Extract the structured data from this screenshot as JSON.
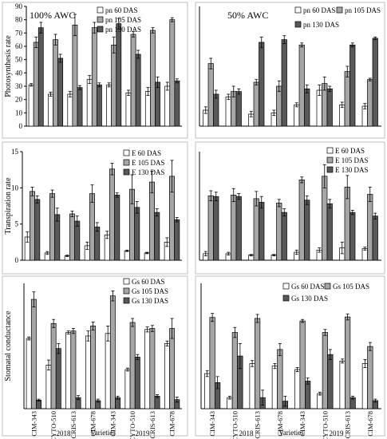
{
  "colors": {
    "s60": "#ffffff",
    "s105": "#a6a6a6",
    "s130": "#595959",
    "stroke": "#000000"
  },
  "chart_data": [
    {
      "type": "bar",
      "panel": "A",
      "annotation": "100% AWC",
      "ylabel": "Photosynthesis rate",
      "ylim": [
        0,
        90
      ],
      "yticks": [
        0,
        10,
        20,
        30,
        40,
        50,
        60,
        70,
        80,
        90
      ],
      "categories": [
        "CIM-343",
        "CYTO-510",
        "CRIS-613",
        "CIM-678",
        "CIM-343",
        "CYTO-510",
        "CRIS-613",
        "CIM-678"
      ],
      "legend": [
        "pn 60 DAS",
        "pn 105 DAS",
        "pn 130 DAS"
      ],
      "series": [
        {
          "name": "pn 60 DAS",
          "values": [
            31,
            24,
            24,
            35,
            31,
            25,
            26,
            30
          ],
          "errors": [
            1,
            1.5,
            2,
            3,
            1.5,
            2,
            3,
            3
          ]
        },
        {
          "name": "pn 105 DAS",
          "values": [
            63,
            65,
            76,
            74,
            61,
            69,
            72,
            80
          ],
          "errors": [
            4,
            4,
            8,
            4,
            6,
            2,
            2,
            1.5
          ]
        },
        {
          "name": "pn 130 DAS",
          "values": [
            74,
            51,
            29,
            31,
            77,
            54,
            33,
            34
          ],
          "errors": [
            4,
            3,
            1.5,
            1.5,
            4,
            3,
            4,
            1.5
          ]
        }
      ]
    },
    {
      "type": "bar",
      "panel": "B",
      "annotation": "50% AWC",
      "ylabel": "",
      "ylim": [
        0,
        90
      ],
      "yticks": [],
      "categories": [
        "CIM-343",
        "CYTO-510",
        "CRIS-613",
        "CIM-678",
        "CIM-343",
        "CYTO-510",
        "CRIS-613",
        "CIM-678"
      ],
      "legend": [
        "pn 60 DAS",
        "pn 105 DAS",
        "pn 130 DAS"
      ],
      "series": [
        {
          "name": "pn 60 DAS",
          "values": [
            12,
            22,
            9,
            10,
            16,
            27,
            16,
            15
          ],
          "errors": [
            2.5,
            2,
            2,
            2,
            1.5,
            4,
            2,
            2
          ]
        },
        {
          "name": "pn 105 DAS",
          "values": [
            47,
            26,
            33,
            30,
            61,
            32,
            41,
            35
          ],
          "errors": [
            4,
            4,
            2,
            4,
            1.5,
            5,
            4,
            1
          ]
        },
        {
          "name": "pn 130 DAS",
          "values": [
            24,
            26,
            63,
            65,
            28,
            28,
            61,
            66
          ],
          "errors": [
            3,
            2,
            4,
            3,
            3,
            2,
            1.5,
            1
          ]
        }
      ]
    },
    {
      "type": "bar",
      "panel": "C",
      "ylabel": "Transpiration rate",
      "ylim": [
        0,
        15
      ],
      "yticks": [
        0,
        5,
        10,
        15
      ],
      "categories": [
        "CIM-343",
        "CYTO-510",
        "CRIS-613",
        "CIM-678",
        "CIM-343",
        "CYTO-510",
        "CRIS-613",
        "CIM-678"
      ],
      "legend": [
        "E 60 DAS",
        "E 105 DAS",
        "E 130 DAS"
      ],
      "series": [
        {
          "name": "E 60 DAS",
          "values": [
            3.2,
            1.0,
            0.6,
            2.0,
            3.5,
            1.3,
            1.0,
            2.5
          ],
          "errors": [
            0.7,
            0.2,
            0.1,
            0.5,
            0.5,
            0.1,
            0.1,
            0.6
          ]
        },
        {
          "name": "E 105 DAS",
          "values": [
            9.5,
            9.2,
            6.4,
            9.2,
            12.6,
            9.8,
            10.8,
            11.6
          ],
          "errors": [
            0.6,
            0.5,
            0.4,
            1.2,
            0.8,
            2.0,
            1.5,
            2.2
          ]
        },
        {
          "name": "E 130 DAS",
          "values": [
            8.4,
            6.3,
            5.4,
            4.6,
            9.0,
            7.3,
            6.6,
            5.6
          ],
          "errors": [
            0.5,
            0.9,
            0.7,
            0.6,
            0.3,
            0.8,
            0.5,
            0.3
          ]
        }
      ]
    },
    {
      "type": "bar",
      "panel": "D",
      "ylabel": "",
      "ylim": [
        0,
        15
      ],
      "yticks": [],
      "categories": [
        "CIM-343",
        "CYTO-510",
        "CRIS-613",
        "CIM-678",
        "CIM-343",
        "CYTO-510",
        "CRIS-613",
        "CIM-678"
      ],
      "legend": [
        "E 60 DAS",
        "E 105 DAS",
        "E 130 DAS"
      ],
      "series": [
        {
          "name": "E 60 DAS",
          "values": [
            0.9,
            0.9,
            0.7,
            0.7,
            1.1,
            1.4,
            1.7,
            1.6
          ],
          "errors": [
            0.3,
            0.2,
            0.1,
            0.1,
            0.3,
            0.3,
            0.8,
            0.2
          ]
        },
        {
          "name": "E 105 DAS",
          "values": [
            8.9,
            9.0,
            8.5,
            7.9,
            11.1,
            11.6,
            10.1,
            9.1
          ],
          "errors": [
            0.7,
            0.9,
            1.0,
            0.5,
            0.4,
            1.6,
            1.6,
            1.0
          ]
        },
        {
          "name": "E 130 DAS",
          "values": [
            8.8,
            8.8,
            8.0,
            6.6,
            8.3,
            7.8,
            6.6,
            6.1
          ],
          "errors": [
            0.6,
            0.4,
            0.8,
            0.5,
            0.6,
            0.6,
            0.3,
            0.4
          ]
        }
      ]
    },
    {
      "type": "bar",
      "panel": "E",
      "ylabel": "Stomatal conductance",
      "ylim": [
        0,
        250
      ],
      "yticks": [],
      "categories": [
        "CIM-343",
        "CYTO-510",
        "CRIS-613",
        "CIM-678",
        "CIM-343",
        "CYTO-510",
        "CRIS-613",
        "CIM-678"
      ],
      "legend": [
        "Gs 60 DAS",
        "Gs 105 DAS",
        "Gs 130 DAS"
      ],
      "series": [
        {
          "name": "Gs 60 DAS",
          "values": [
            140,
            87,
            152,
            145,
            150,
            78,
            158,
            130
          ],
          "errors": [
            3,
            10,
            3,
            10,
            15,
            3,
            5,
            5
          ]
        },
        {
          "name": "Gs 105 DAS",
          "values": [
            218,
            170,
            155,
            165,
            225,
            172,
            160,
            160
          ],
          "errors": [
            15,
            8,
            5,
            8,
            10,
            8,
            6,
            20
          ]
        },
        {
          "name": "Gs 130 DAS",
          "values": [
            17,
            120,
            22,
            16,
            22,
            103,
            25,
            18
          ],
          "errors": [
            2,
            10,
            4,
            3,
            3,
            5,
            3,
            5
          ]
        }
      ],
      "year_labels": [
        "2018",
        "2019"
      ],
      "xlabel": "Varieties"
    },
    {
      "type": "bar",
      "panel": "F",
      "ylabel": "",
      "ylim": [
        0,
        250
      ],
      "yticks": [],
      "categories": [
        "CIM-343",
        "CYTO-510",
        "CRIS-613",
        "CIM-678",
        "CIM-343",
        "CYTO-510",
        "CRIS-613",
        "CIM-678"
      ],
      "legend": [
        "Gs 60 DAS",
        "Gs 105 DAS",
        "Gs 130 DAS"
      ],
      "series": [
        {
          "name": "Gs 60 DAS",
          "values": [
            70,
            22,
            90,
            85,
            78,
            30,
            95,
            90
          ],
          "errors": [
            6,
            3,
            6,
            5,
            4,
            3,
            4,
            8
          ]
        },
        {
          "name": "Gs 105 DAS",
          "values": [
            182,
            152,
            180,
            118,
            175,
            152,
            183,
            124
          ],
          "errors": [
            8,
            10,
            8,
            12,
            3,
            6,
            6,
            8
          ]
        },
        {
          "name": "Gs 130 DAS",
          "values": [
            52,
            105,
            22,
            15,
            55,
            108,
            22,
            16
          ],
          "errors": [
            12,
            25,
            15,
            10,
            6,
            10,
            3,
            3
          ]
        }
      ],
      "year_labels": [
        "2018",
        "2019"
      ],
      "xlabel": "Varieties"
    }
  ]
}
